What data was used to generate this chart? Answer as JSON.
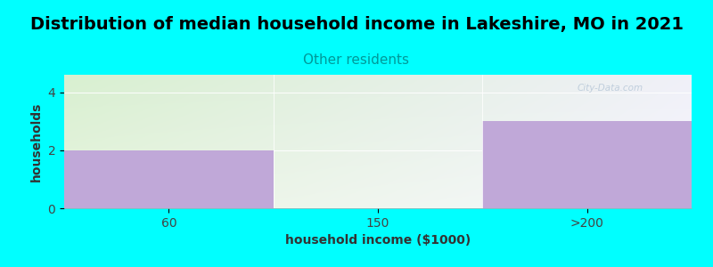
{
  "title": "Distribution of median household income in Lakeshire, MO in 2021",
  "subtitle": "Other residents",
  "subtitle_color": "#009999",
  "categories": [
    "60",
    "150",
    ">200"
  ],
  "values": [
    2,
    0,
    3
  ],
  "bar_color": "#c0a8d8",
  "xlabel": "household income ($1000)",
  "ylabel": "households",
  "ylim": [
    0,
    4.6
  ],
  "yticks": [
    0,
    2,
    4
  ],
  "background_color": "#00ffff",
  "plot_bg_color_left": "#d8f0d0",
  "plot_bg_color_right": "#f0f0f8",
  "watermark": "City-Data.com",
  "title_fontsize": 14,
  "subtitle_fontsize": 11,
  "label_fontsize": 10,
  "tick_fontsize": 10
}
